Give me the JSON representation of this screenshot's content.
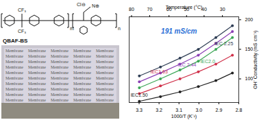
{
  "chart_data": {
    "type": "line",
    "title": "191 mS/cm",
    "xlabel": "1000/T (K⁻¹)",
    "ylabel": "OH⁻ Conductivity (mS cm⁻¹)",
    "x2label": "Temperature (°C)",
    "x": [
      3.299,
      3.193,
      3.095,
      3.003,
      2.915,
      2.832
    ],
    "series": [
      {
        "name": "IEC 2.25",
        "color": "#2f3e55",
        "values": [
          105,
          120,
          135,
          150,
          170,
          190
        ]
      },
      {
        "name": "IEC 2.44",
        "color": "#8a3fb5",
        "values": [
          95,
          110,
          125,
          140,
          160,
          180
        ]
      },
      {
        "name": "IEC2.0",
        "color": "#3aa655",
        "values": [
          85,
          100,
          115,
          130,
          150,
          170
        ]
      },
      {
        "name": "IEC1.63",
        "color": "#d0314a",
        "values": [
          75,
          88,
          100,
          112,
          125,
          140
        ]
      },
      {
        "name": "IEC1.50",
        "color": "#222222",
        "values": [
          62,
          70,
          78,
          87,
          97,
          110
        ]
      }
    ],
    "marker": "circle",
    "xlim": [
      3.35,
      2.8
    ],
    "xticks": [
      3.3,
      3.2,
      3.1,
      3.0,
      2.9,
      2.8
    ],
    "x2lim": [
      3.35,
      2.8
    ],
    "x2ticks": [
      {
        "value": 3.338,
        "label": "80"
      },
      {
        "value": 3.247,
        "label": "70"
      },
      {
        "value": 3.15,
        "label": "60"
      },
      {
        "value": 3.062,
        "label": "50"
      },
      {
        "value": 2.974,
        "label": "40"
      },
      {
        "value": 2.882,
        "label": "30"
      }
    ],
    "ylim": [
      60,
      205
    ],
    "yticks": [
      100,
      150,
      200
    ],
    "grid": false,
    "annotations": [
      {
        "text": "191 mS/cm",
        "x": 3.1,
        "y": 180,
        "color": "#2a6fd6"
      },
      {
        "text": "IEC 2.25",
        "x": 2.875,
        "y": 160,
        "color": "#2f3e55"
      },
      {
        "text": "IEC 2.44",
        "x": 3.06,
        "y": 124,
        "color": "#8a3fb5"
      },
      {
        "text": "IEC2.0",
        "x": 2.956,
        "y": 129,
        "color": "#3aa655"
      },
      {
        "text": "IEC1.63",
        "x": 3.2,
        "y": 112,
        "color": "#d0314a"
      },
      {
        "text": "IEC1.50",
        "x": 3.3,
        "y": 73,
        "color": "#222222"
      }
    ]
  },
  "left_panel": {
    "structure_label": "QBAF-BS",
    "structure_texts": [
      "CF₃",
      "CF₃",
      "Cl⊖",
      "N⊕",
      "m",
      "n"
    ],
    "photo_text": "Membrane"
  }
}
